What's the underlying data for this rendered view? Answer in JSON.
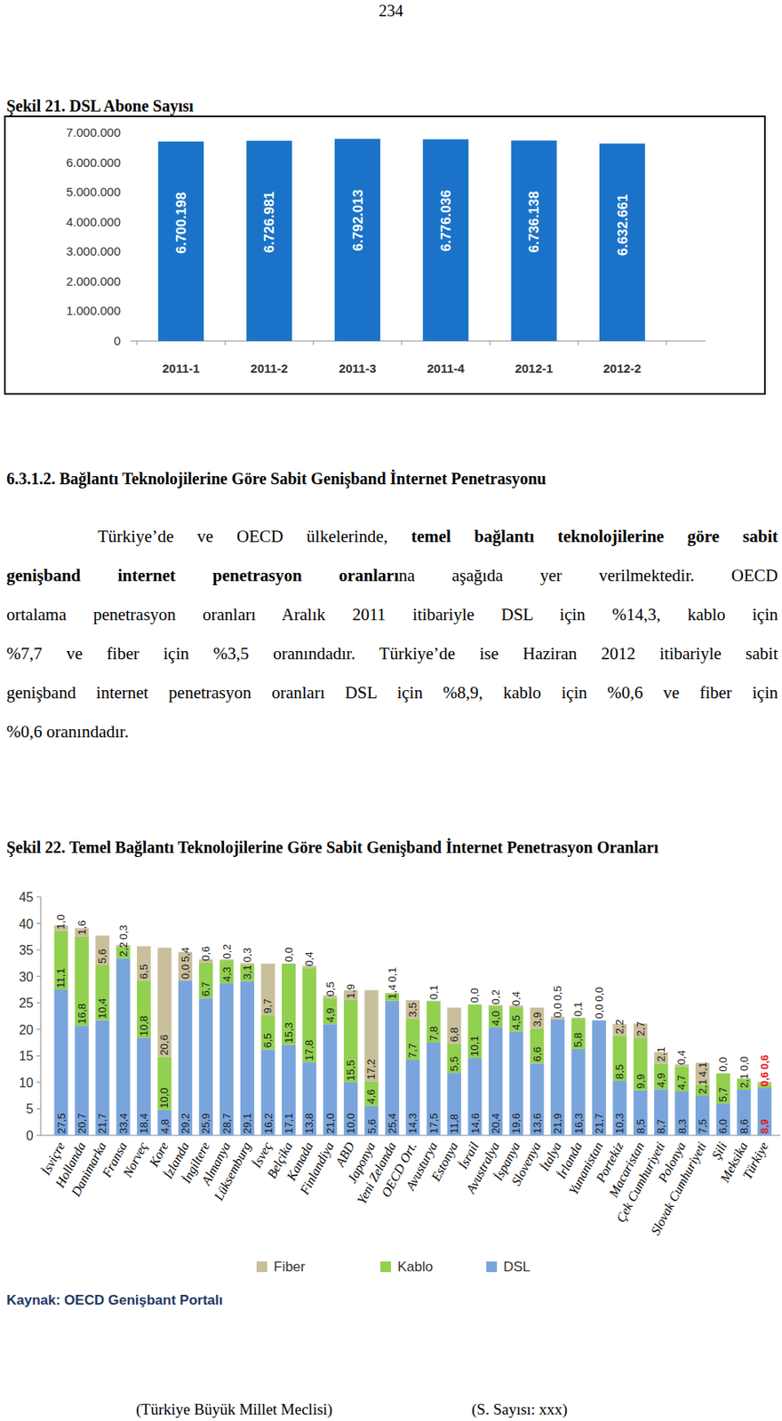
{
  "page_number": "234",
  "section_heading": "6.3.1.2. Bağlantı Teknolojilerine Göre Sabit Genişband İnternet Penetrasyonu",
  "paragraph": [
    {
      "runs": [
        {
          "text": "Türkiye’de ve OECD ülkelerinde, ",
          "bold": false
        },
        {
          "text": "temel bağlantı teknolojilerine göre sabit",
          "bold": true
        }
      ]
    },
    {
      "runs": [
        {
          "text": "genişband internet penetrasyon oranları",
          "bold": true
        },
        {
          "text": "na aşağıda yer verilmektedir. OECD",
          "bold": false
        }
      ]
    },
    {
      "runs": [
        {
          "text": "ortalama penetrasyon oranları Aralık 2011 itibariyle DSL için %14,3, kablo için",
          "bold": false
        }
      ]
    },
    {
      "runs": [
        {
          "text": "%7,7 ve fiber için %3,5 oranındadır. Türkiye’de ise Haziran 2012 itibariyle sabit",
          "bold": false
        }
      ]
    },
    {
      "runs": [
        {
          "text": "genişband internet penetrasyon oranları DSL için %8,9, kablo için %0,6 ve fiber için",
          "bold": false
        }
      ]
    },
    {
      "runs": [
        {
          "text": "%0,6 oranındadır.",
          "bold": false
        }
      ]
    }
  ],
  "footer": [
    "(Türkiye Büyük Millet Meclisi)",
    "(S. Sayısı: xxx)"
  ],
  "chart_data": [
    {
      "type": "bar",
      "title": "Şekil 21. DSL Abone Sayısı",
      "categories": [
        "2011-1",
        "2011-2",
        "2011-3",
        "2011-4",
        "2012-1",
        "2012-2"
      ],
      "values": [
        6700198,
        6726981,
        6792013,
        6776036,
        6736138,
        6632661
      ],
      "value_labels": [
        "6.700.198",
        "6.726.981",
        "6.792.013",
        "6.776.036",
        "6.736.138",
        "6.632.661"
      ],
      "color": "#1a73c8",
      "ylim": [
        0,
        7000000
      ],
      "yticks": [
        0,
        {
          "value": 1000000,
          "label": "1.000.000"
        },
        {
          "value": 2000000,
          "label": "2.000.000"
        },
        {
          "value": 3000000,
          "label": "3.000.000"
        },
        {
          "value": 4000000,
          "label": "4.000.000"
        },
        {
          "value": 5000000,
          "label": "5.000.000"
        },
        {
          "value": 6000000,
          "label": "6.000.000"
        },
        {
          "value": 7000000,
          "label": "7.000.000"
        }
      ],
      "grid": false,
      "data_labels": true
    },
    {
      "type": "bar",
      "title": "Şekil 22. Temel Bağlantı Teknolojilerine Göre Sabit Genişband İnternet Penetrasyon Oranları",
      "source": "Kaynak: OECD Genişbant Portalı",
      "stacked": true,
      "grid": false,
      "data_labels": true,
      "legend": "bottom",
      "categories": [
        "İsviçre",
        "Hollanda",
        "Danimarka",
        "Fransa",
        "Norveç",
        "Kore",
        "İzlanda",
        "İngiltere",
        "Almanya",
        "Lüksemburg",
        "İsveç",
        "Belçika",
        "Kanada",
        "Finlandiya",
        "ABD",
        "Japonya",
        "Yeni Zelanda",
        "OECD Ort.",
        "Avusturya",
        "Estonya",
        "İsrail",
        "Avustralya",
        "İspanya",
        "Slovenya",
        "İtalya",
        "İrlanda",
        "Yunanistan",
        "Portekiz",
        "Macaristan",
        "Çek Cumhuriyeti",
        "Polonya",
        "Slovak Cumhuriyeti",
        "Şili",
        "Meksika",
        "Türkiye"
      ],
      "ylim": [
        0,
        45
      ],
      "yticks": [
        0,
        5,
        10,
        15,
        20,
        25,
        30,
        35,
        40,
        45
      ],
      "series": [
        {
          "name": "DSL",
          "color": "#7aa5dc",
          "values": [
            27.5,
            20.7,
            21.7,
            33.4,
            18.4,
            4.8,
            29.2,
            25.9,
            28.7,
            29.1,
            16.2,
            17.1,
            13.8,
            21.0,
            10.0,
            5.6,
            25.4,
            14.3,
            17.5,
            11.8,
            14.6,
            20.4,
            19.6,
            13.6,
            21.9,
            16.3,
            21.7,
            10.3,
            8.5,
            8.7,
            8.3,
            7.5,
            6.0,
            8.6,
            8.9
          ],
          "value_labels": [
            "27,5",
            "20,7",
            "21,7",
            "33,4",
            "18,4",
            "4,8",
            "29,2",
            "25,9",
            "28,7",
            "29,1",
            "16,2",
            "17,1",
            "13,8",
            "21,0",
            "10,0",
            "5,6",
            "25,4",
            "14,3",
            "17,5",
            "11,8",
            "14,6",
            "20,4",
            "19,6",
            "13,6",
            "21,9",
            "16,3",
            "21,7",
            "10,3",
            "8,5",
            "8,7",
            "8,3",
            "7,5",
            "6,0",
            "8,6",
            "8,9"
          ]
        },
        {
          "name": "Kablo",
          "color": "#92d050",
          "values": [
            11.1,
            16.8,
            10.4,
            2.2,
            10.8,
            10.0,
            0.0,
            6.7,
            4.3,
            3.1,
            6.5,
            15.3,
            17.8,
            4.9,
            15.5,
            4.6,
            1.4,
            7.7,
            7.8,
            5.5,
            10.1,
            4.0,
            4.5,
            6.6,
            0.0,
            5.8,
            0.0,
            8.5,
            9.9,
            4.9,
            4.7,
            2.1,
            5.7,
            2.1,
            0.6
          ],
          "value_labels": [
            "11,1",
            "16,8",
            "10,4",
            "2,2",
            "10,8",
            "10,0",
            "0,0",
            "6,7",
            "4,3",
            "3,1",
            "6,5",
            "15,3",
            "17,8",
            "4,9",
            "15,5",
            "4,6",
            "1,4",
            "7,7",
            "7,8",
            "5,5",
            "10,1",
            "4,0",
            "4,5",
            "6,6",
            "0,0",
            "5,8",
            "0,0",
            "8,5",
            "9,9",
            "4,9",
            "4,7",
            "2,1",
            "5,7",
            "2,1",
            "0,6"
          ]
        },
        {
          "name": "Fiber",
          "color": "#c9bf9b",
          "values": [
            1.0,
            1.6,
            5.6,
            0.3,
            6.5,
            20.6,
            5.4,
            0.6,
            0.2,
            0.3,
            9.7,
            0.0,
            0.4,
            0.5,
            1.9,
            17.2,
            0.1,
            3.5,
            0.1,
            6.8,
            0.0,
            0.2,
            0.4,
            3.9,
            0.5,
            0.1,
            0.0,
            2.2,
            2.7,
            2.1,
            0.4,
            4.1,
            0.0,
            0.0,
            0.6
          ],
          "value_labels": [
            "1,0",
            "1,6",
            "5,6",
            "0,3",
            "6,5",
            "20,6",
            "5,4",
            "0,6",
            "0,2",
            "0,3",
            "9,7",
            "0,0",
            "0,4",
            "0,5",
            "1,9",
            "17,2",
            "0,1",
            "3,5",
            "0,1",
            "6,8",
            "0,0",
            "0,2",
            "0,4",
            "3,9",
            "0,5",
            "0,1",
            "0,0",
            "2,2",
            "2,7",
            "2,1",
            "0,4",
            "4,1",
            "0,0",
            "0,0",
            "0,6"
          ]
        }
      ]
    }
  ]
}
